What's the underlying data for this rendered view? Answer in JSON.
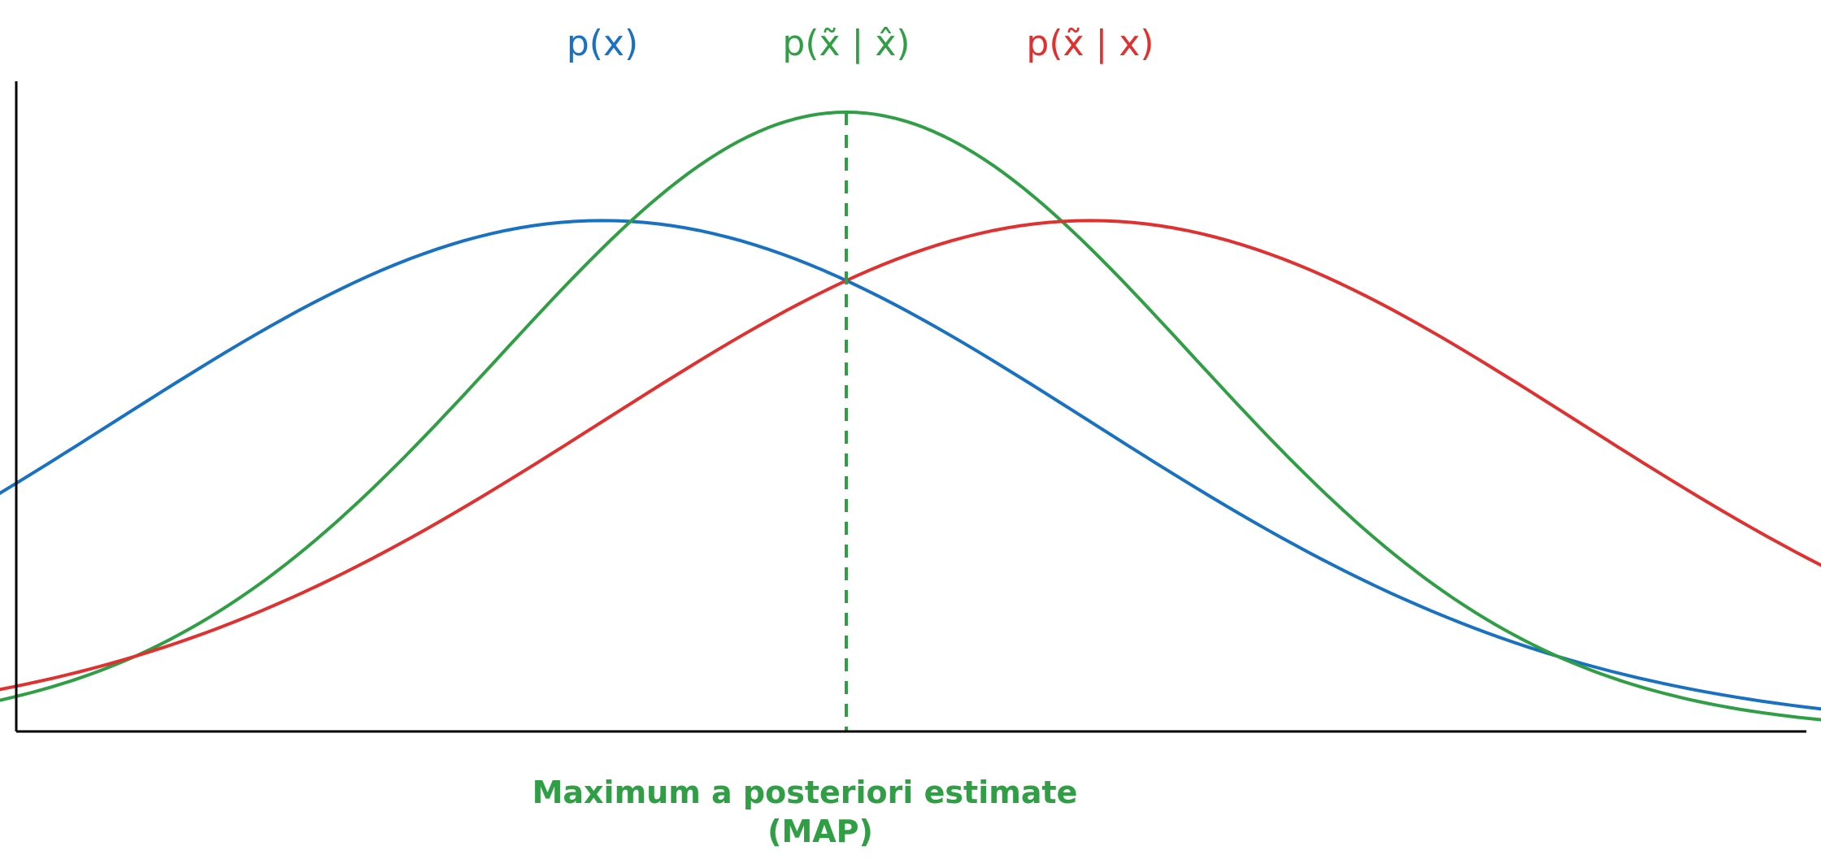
{
  "colors": {
    "prior": "#1971c2",
    "posterior": "#2f9e44",
    "likelihood": "#e03131",
    "axis": "#000000"
  },
  "curves": [
    {
      "key": "prior",
      "label": "p(x)",
      "mean": 0,
      "sigma": 1,
      "peak": 0.825,
      "color": "#1971c2"
    },
    {
      "key": "posterior",
      "label": "p(x̃ | x̂)",
      "mean": 0.5,
      "sigma": 0.71,
      "peak": 1.0,
      "color": "#2f9e44"
    },
    {
      "key": "likelihood",
      "label": "p(x̃ | x)",
      "mean": 1,
      "sigma": 1,
      "peak": 0.825,
      "color": "#e03131"
    }
  ],
  "map_marker": {
    "x": 0.5,
    "color": "#2f9e44"
  },
  "annotation": {
    "line1": "Maximum a posteriori estimate",
    "line2": "(MAP)"
  }
}
